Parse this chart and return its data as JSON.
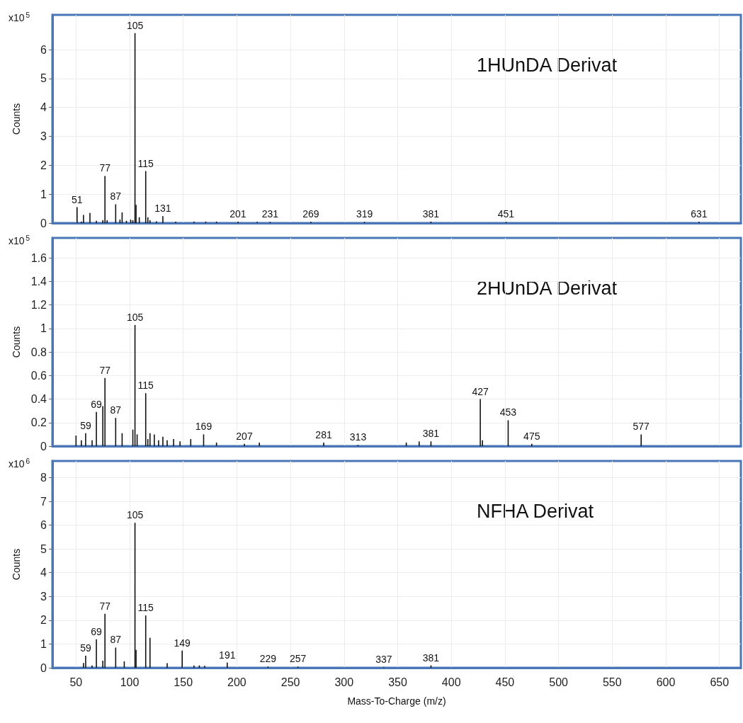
{
  "chart_data": [
    {
      "type": "bar",
      "ylabel": "Counts",
      "color": "#111111",
      "grid": true,
      "tick_labels": "y",
      "annotations": [
        "x10$^{5}$",
        "1HUnDA Derivat",
        {
          "text": "51",
          "x": 51,
          "y": 0.55
        },
        {
          "text": "77",
          "x": 77,
          "y": 1.63
        },
        {
          "text": "87",
          "x": 87,
          "y": 0.65
        },
        {
          "text": "105",
          "x": 105,
          "y": 6.57
        },
        {
          "text": "115",
          "x": 115,
          "y": 1.8
        },
        {
          "text": "131",
          "x": 131,
          "y": 0.24
        },
        {
          "text": "201",
          "x": 201,
          "y": 0.05
        },
        {
          "text": "231",
          "x": 231,
          "y": 0.04
        },
        {
          "text": "269",
          "x": 269,
          "y": 0.04
        },
        {
          "text": "319",
          "x": 319,
          "y": 0.04
        },
        {
          "text": "381",
          "x": 381,
          "y": 0.05
        },
        {
          "text": "451",
          "x": 451,
          "y": 0.04
        },
        {
          "text": "631",
          "x": 631,
          "y": 0.04
        }
      ],
      "x": [
        51,
        55,
        57,
        63,
        69,
        75,
        77,
        79,
        87,
        91,
        93,
        97,
        101,
        103,
        105,
        106,
        109,
        115,
        117,
        119,
        125,
        131,
        143,
        160,
        171,
        181,
        201,
        219,
        231,
        269,
        319,
        381,
        451,
        631
      ],
      "values": [
        0.55,
        0.05,
        0.28,
        0.35,
        0.08,
        0.1,
        1.63,
        0.1,
        0.65,
        0.12,
        0.37,
        0.08,
        0.12,
        0.1,
        6.57,
        0.63,
        0.2,
        1.8,
        0.2,
        0.1,
        0.06,
        0.24,
        0.05,
        0.05,
        0.05,
        0.05,
        0.05,
        0.04,
        0.04,
        0.04,
        0.04,
        0.05,
        0.04,
        0.04
      ],
      "xlim": [
        28,
        670
      ],
      "xticks": [
        50,
        100,
        150,
        200,
        250,
        300,
        350,
        400,
        450,
        500,
        550,
        600,
        650
      ],
      "ylim": [
        0,
        7.2
      ],
      "yticks": [
        0,
        1,
        2,
        3,
        4,
        5,
        6
      ]
    },
    {
      "type": "bar",
      "ylabel": "Counts",
      "color": "#111111",
      "grid": true,
      "tick_labels": "y",
      "annotations": [
        "x10$^{5}$",
        "2HUnDA Derivat",
        {
          "text": "59",
          "x": 59,
          "y": 0.11
        },
        {
          "text": "69",
          "x": 69,
          "y": 0.29
        },
        {
          "text": "77",
          "x": 77,
          "y": 0.58
        },
        {
          "text": "87",
          "x": 87,
          "y": 0.24
        },
        {
          "text": "105",
          "x": 105,
          "y": 1.03
        },
        {
          "text": "115",
          "x": 115,
          "y": 0.45
        },
        {
          "text": "169",
          "x": 169,
          "y": 0.1
        },
        {
          "text": "207",
          "x": 207,
          "y": 0.02
        },
        {
          "text": "281",
          "x": 281,
          "y": 0.03
        },
        {
          "text": "313",
          "x": 313,
          "y": 0.01
        },
        {
          "text": "381",
          "x": 381,
          "y": 0.04
        },
        {
          "text": "427",
          "x": 427,
          "y": 0.4
        },
        {
          "text": "453",
          "x": 453,
          "y": 0.22
        },
        {
          "text": "475",
          "x": 475,
          "y": 0.02
        },
        {
          "text": "577",
          "x": 577,
          "y": 0.1
        }
      ],
      "x": [
        50,
        55,
        59,
        65,
        69,
        75,
        77,
        87,
        93,
        103,
        105,
        107,
        115,
        117,
        119,
        123,
        127,
        131,
        135,
        141,
        147,
        157,
        169,
        181,
        207,
        221,
        281,
        313,
        358,
        370,
        381,
        427,
        429,
        453,
        475,
        577
      ],
      "values": [
        0.09,
        0.05,
        0.11,
        0.05,
        0.29,
        0.34,
        0.58,
        0.24,
        0.11,
        0.14,
        1.03,
        0.1,
        0.45,
        0.06,
        0.11,
        0.1,
        0.05,
        0.08,
        0.05,
        0.06,
        0.04,
        0.06,
        0.1,
        0.03,
        0.02,
        0.03,
        0.03,
        0.01,
        0.03,
        0.04,
        0.04,
        0.4,
        0.05,
        0.22,
        0.02,
        0.1
      ],
      "xlim": [
        28,
        670
      ],
      "xticks": [
        50,
        100,
        150,
        200,
        250,
        300,
        350,
        400,
        450,
        500,
        550,
        600,
        650
      ],
      "ylim": [
        0,
        1.77
      ],
      "yticks": [
        0,
        0.2,
        0.4,
        0.6,
        0.8,
        1,
        1.2,
        1.4,
        1.6
      ]
    },
    {
      "type": "bar",
      "xlabel": "Mass-To-Charge (m/z)",
      "ylabel": "Counts",
      "color": "#111111",
      "grid": true,
      "annotations": [
        "x10$^{6}$",
        "NFHA Derivat",
        {
          "text": "59",
          "x": 59,
          "y": 0.51
        },
        {
          "text": "69",
          "x": 69,
          "y": 1.2
        },
        {
          "text": "77",
          "x": 77,
          "y": 2.27
        },
        {
          "text": "87",
          "x": 87,
          "y": 0.85
        },
        {
          "text": "105",
          "x": 105,
          "y": 6.1
        },
        {
          "text": "115",
          "x": 115,
          "y": 2.2
        },
        {
          "text": "149",
          "x": 149,
          "y": 0.72
        },
        {
          "text": "191",
          "x": 191,
          "y": 0.22
        },
        {
          "text": "229",
          "x": 229,
          "y": 0.05
        },
        {
          "text": "257",
          "x": 257,
          "y": 0.05
        },
        {
          "text": "337",
          "x": 337,
          "y": 0.03
        },
        {
          "text": "381",
          "x": 381,
          "y": 0.1
        }
      ],
      "x": [
        57,
        59,
        65,
        69,
        75,
        77,
        87,
        95,
        105,
        106,
        115,
        119,
        135,
        149,
        160,
        165,
        170,
        191,
        229,
        257,
        337,
        381
      ],
      "values": [
        0.2,
        0.51,
        0.1,
        1.2,
        0.3,
        2.27,
        0.85,
        0.27,
        6.1,
        0.75,
        2.2,
        1.26,
        0.19,
        0.72,
        0.1,
        0.1,
        0.08,
        0.22,
        0.05,
        0.05,
        0.03,
        0.1
      ],
      "xlim": [
        28,
        670
      ],
      "xticks": [
        50,
        100,
        150,
        200,
        250,
        300,
        350,
        400,
        450,
        500,
        550,
        600,
        650
      ],
      "ylim": [
        0,
        8.7
      ],
      "yticks": [
        0,
        1,
        2,
        3,
        4,
        5,
        6,
        7,
        8
      ]
    }
  ]
}
